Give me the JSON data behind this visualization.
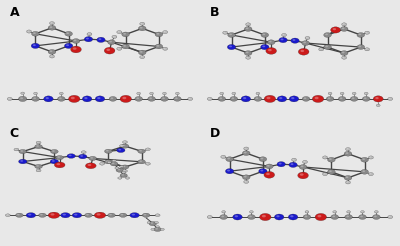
{
  "background_color": "#e8e8e8",
  "panel_labels": [
    "A",
    "B",
    "C",
    "D"
  ],
  "label_fontsize": 9,
  "label_color": "black",
  "label_fontweight": "bold",
  "colors": {
    "C": "#888888",
    "C_dark": "#606060",
    "N": "#1a1acc",
    "O": "#cc1a1a",
    "H": "#bbbbbb",
    "bond": "#444444",
    "bg": "#e8e8e8"
  },
  "figsize": [
    4.0,
    2.46
  ],
  "dpi": 100
}
